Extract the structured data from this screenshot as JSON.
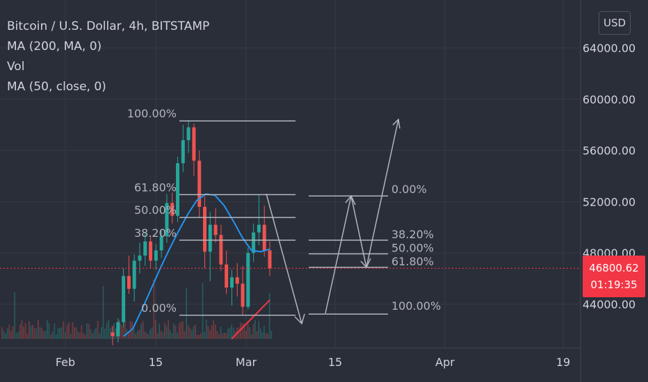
{
  "legend": {
    "symbol": "Bitcoin / U.S. Dollar, 4h, BITSTAMP",
    "ma200": "MA (200, MA, 0)",
    "vol": "Vol",
    "ma50": "MA (50, close, 0)"
  },
  "currency_button": "USD",
  "last_price": "46800.62",
  "countdown": "01:19:35",
  "colors": {
    "background": "#2a2e39",
    "up": "#26a69a",
    "down": "#ef5350",
    "ma50": "#2196f3",
    "fib": "#b2b5be",
    "price_line": "#f23645",
    "axis_text": "#d1d4dc",
    "trend_line": "#f23645"
  },
  "chart_data": {
    "type": "candlestick",
    "y_axis": {
      "ticks": [
        "64000.00",
        "60000.00",
        "56000.00",
        "52000.00",
        "48000.00",
        "44000.00"
      ],
      "tick_values": [
        64000,
        60000,
        56000,
        52000,
        48000,
        44000
      ]
    },
    "x_axis": {
      "ticks": [
        "Feb",
        "15",
        "Mar",
        "15",
        "Apr",
        "19"
      ]
    },
    "fib_retracement_left": {
      "levels": [
        {
          "label": "100.00%",
          "value": 58300
        },
        {
          "label": "61.80%",
          "value": 52550
        },
        {
          "label": "50.00%",
          "value": 50770
        },
        {
          "label": "38.20%",
          "value": 49000
        },
        {
          "label": "0.00%",
          "value": 43140
        }
      ]
    },
    "fib_projection_right": {
      "levels": [
        {
          "label": "0.00%",
          "value": 52450
        },
        {
          "label": "38.20%",
          "value": 49000
        },
        {
          "label": "50.00%",
          "value": 47930
        },
        {
          "label": "61.80%",
          "value": 46880
        },
        {
          "label": "100.00%",
          "value": 43230
        }
      ]
    },
    "last_price": 46800.62,
    "ohlc_approx": [
      {
        "open": 41800,
        "high": 42300,
        "low": 40800,
        "close": 41500
      },
      {
        "open": 41500,
        "high": 42900,
        "low": 41000,
        "close": 42600
      },
      {
        "open": 42600,
        "high": 46800,
        "low": 42200,
        "close": 46200
      },
      {
        "open": 46200,
        "high": 47800,
        "low": 44800,
        "close": 45200
      },
      {
        "open": 45200,
        "high": 47900,
        "low": 44200,
        "close": 47400
      },
      {
        "open": 47400,
        "high": 48800,
        "low": 46400,
        "close": 47800
      },
      {
        "open": 47800,
        "high": 49600,
        "low": 47000,
        "close": 48900
      },
      {
        "open": 48900,
        "high": 49300,
        "low": 46800,
        "close": 47400
      },
      {
        "open": 47400,
        "high": 48700,
        "low": 46700,
        "close": 48200
      },
      {
        "open": 48200,
        "high": 49800,
        "low": 47600,
        "close": 49300
      },
      {
        "open": 49300,
        "high": 52600,
        "low": 48800,
        "close": 51900
      },
      {
        "open": 51900,
        "high": 52700,
        "low": 50300,
        "close": 50900
      },
      {
        "open": 50900,
        "high": 55500,
        "low": 50400,
        "close": 55000
      },
      {
        "open": 55000,
        "high": 58000,
        "low": 54300,
        "close": 56800
      },
      {
        "open": 56800,
        "high": 58350,
        "low": 55800,
        "close": 57800
      },
      {
        "open": 57800,
        "high": 58100,
        "low": 54000,
        "close": 55200
      },
      {
        "open": 55200,
        "high": 56000,
        "low": 50800,
        "close": 51600
      },
      {
        "open": 51600,
        "high": 52400,
        "low": 46800,
        "close": 48100
      },
      {
        "open": 48100,
        "high": 51200,
        "low": 45800,
        "close": 50200
      },
      {
        "open": 50200,
        "high": 51500,
        "low": 48800,
        "close": 49400
      },
      {
        "open": 49400,
        "high": 50200,
        "low": 46600,
        "close": 47100
      },
      {
        "open": 47100,
        "high": 48200,
        "low": 44800,
        "close": 45300
      },
      {
        "open": 45300,
        "high": 46700,
        "low": 43900,
        "close": 46100
      },
      {
        "open": 46100,
        "high": 47200,
        "low": 44600,
        "close": 45600
      },
      {
        "open": 45600,
        "high": 47000,
        "low": 43100,
        "close": 43800
      },
      {
        "open": 43800,
        "high": 48400,
        "low": 43600,
        "close": 48000
      },
      {
        "open": 48000,
        "high": 50300,
        "low": 47300,
        "close": 49600
      },
      {
        "open": 49600,
        "high": 52500,
        "low": 48600,
        "close": 50200
      },
      {
        "open": 50200,
        "high": 51700,
        "low": 47700,
        "close": 48200
      },
      {
        "open": 48200,
        "high": 48900,
        "low": 46200,
        "close": 46800
      }
    ],
    "ma50_approx": [
      41500,
      42100,
      43600,
      45200,
      46800,
      48300,
      49700,
      51000,
      52100,
      52600,
      52500,
      51700,
      50500,
      49200,
      48200,
      48100,
      48300
    ]
  }
}
